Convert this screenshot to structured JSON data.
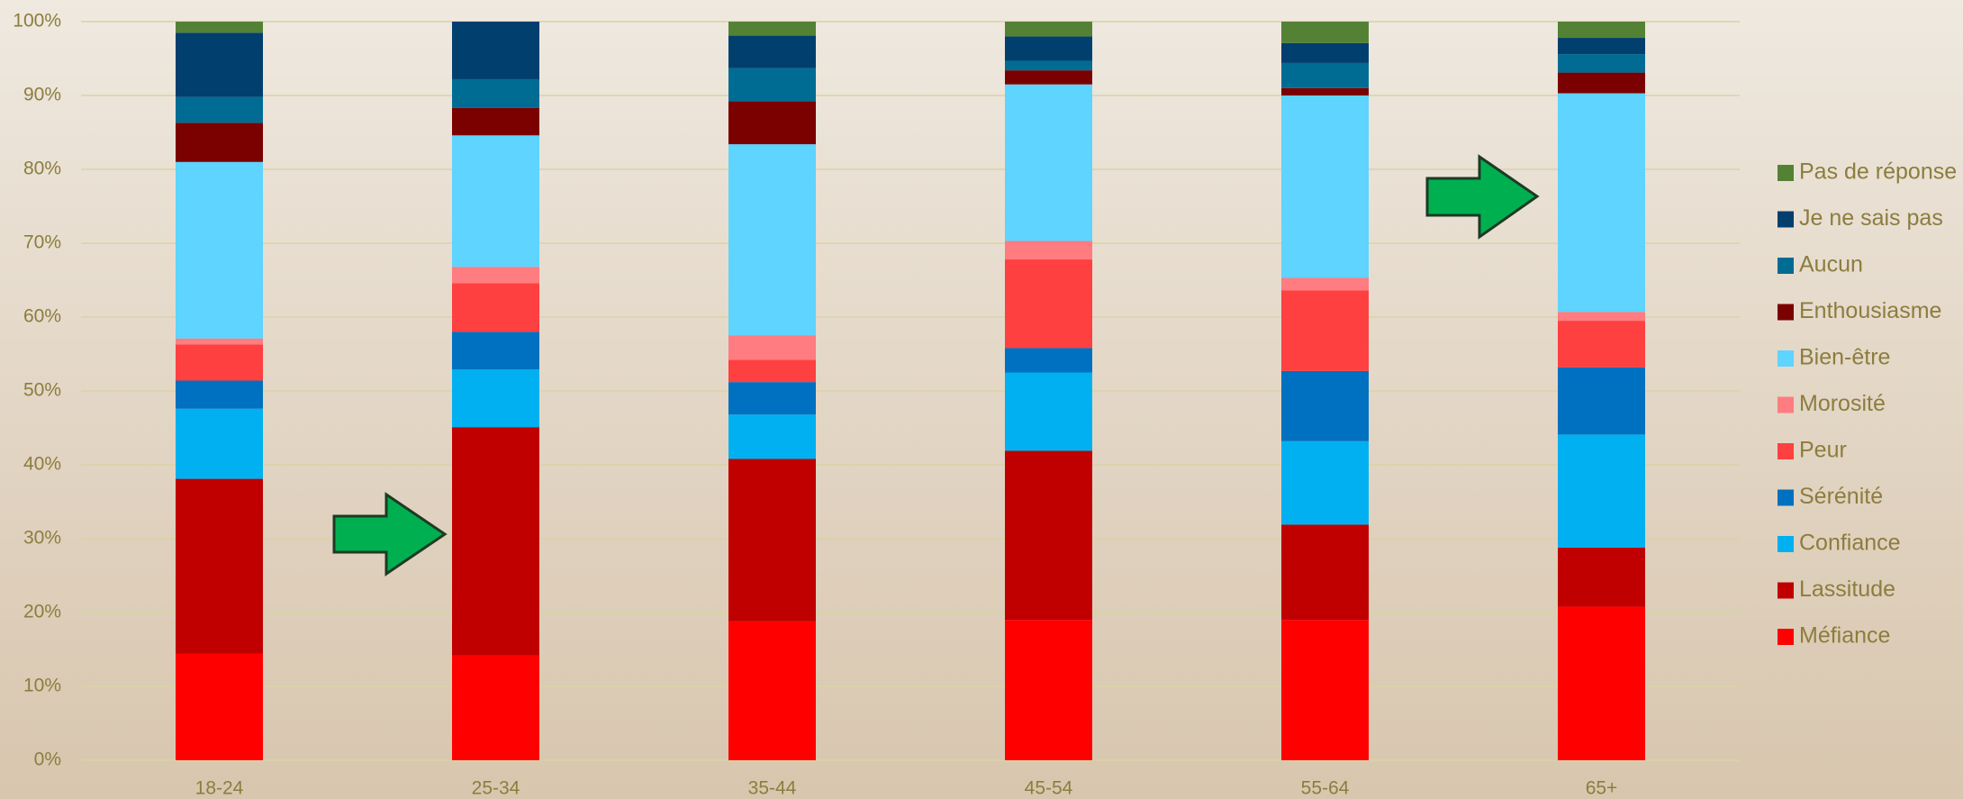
{
  "chart_data": {
    "type": "stacked_bar",
    "categories": [
      "18-24",
      "25-34",
      "35-44",
      "45-54",
      "55-64",
      "65+"
    ],
    "series": [
      {
        "name": "Méfiance",
        "color": "#ff0000",
        "values": [
          14.4,
          14.2,
          18.8,
          19.0,
          19.0,
          20.8
        ]
      },
      {
        "name": "Lassitude",
        "color": "#c00000",
        "values": [
          23.7,
          30.9,
          22.0,
          22.9,
          12.9,
          8.0
        ]
      },
      {
        "name": "Confiance",
        "color": "#00b0f0",
        "values": [
          9.5,
          7.8,
          6.0,
          10.6,
          11.3,
          15.3
        ]
      },
      {
        "name": "Sérénité",
        "color": "#0070c0",
        "values": [
          3.8,
          5.1,
          4.4,
          3.3,
          9.5,
          9.1
        ]
      },
      {
        "name": "Peur",
        "color": "#ff4040",
        "values": [
          4.9,
          6.6,
          3.0,
          12.0,
          10.9,
          6.3
        ]
      },
      {
        "name": "Morosité",
        "color": "#ff7c80",
        "values": [
          0.8,
          2.2,
          3.3,
          2.5,
          1.7,
          1.2
        ]
      },
      {
        "name": "Bien-être",
        "color": "#5ed4ff",
        "values": [
          23.9,
          17.8,
          25.9,
          21.2,
          24.7,
          29.6
        ]
      },
      {
        "name": "Enthousiasme",
        "color": "#7b0000",
        "values": [
          5.3,
          3.7,
          5.8,
          1.9,
          1.0,
          2.8
        ]
      },
      {
        "name": "Aucun",
        "color": "#006c93",
        "values": [
          3.5,
          3.9,
          4.5,
          1.3,
          3.4,
          2.5
        ]
      },
      {
        "name": "Je ne sais pas",
        "color": "#003f6e",
        "values": [
          8.7,
          7.8,
          4.4,
          3.3,
          2.7,
          2.2
        ]
      },
      {
        "name": "Pas de réponse",
        "color": "#548235",
        "values": [
          1.5,
          0,
          1.9,
          2.0,
          2.9,
          2.2
        ]
      }
    ],
    "ylim": [
      0,
      100
    ],
    "yticks": [
      {
        "value": 0,
        "label": "0%"
      },
      {
        "value": 10,
        "label": "10%"
      },
      {
        "value": 20,
        "label": "20%"
      },
      {
        "value": 30,
        "label": "30%"
      },
      {
        "value": 40,
        "label": "40%"
      },
      {
        "value": 50,
        "label": "50%"
      },
      {
        "value": 60,
        "label": "60%"
      },
      {
        "value": 70,
        "label": "70%"
      },
      {
        "value": 80,
        "label": "80%"
      },
      {
        "value": 90,
        "label": "90%"
      },
      {
        "value": 100,
        "label": "100%"
      }
    ],
    "grid": true,
    "legend": "right"
  }
}
